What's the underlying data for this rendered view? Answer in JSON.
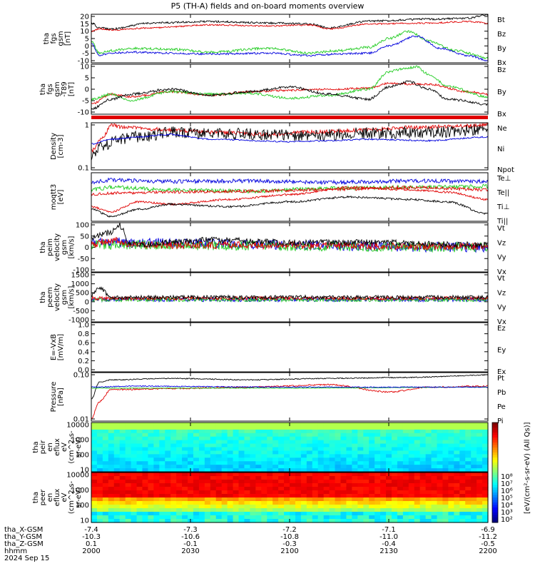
{
  "title": "P5 (TH-A) fields and on-board moments overview",
  "colors": {
    "black": "#000000",
    "red": "#e00000",
    "green": "#22cc22",
    "blue": "#0000dd",
    "frame": "#000000"
  },
  "panels": [
    {
      "id": "fgs-gsm",
      "ylabel": [
        "tha",
        "fgs",
        "gsm",
        "[nT]"
      ],
      "ticks": [
        "20",
        "15",
        "10",
        "5",
        "0",
        "-5",
        "-10"
      ],
      "legend": [
        {
          "name": "Bt",
          "color": "black"
        },
        {
          "name": "Bz",
          "color": "red"
        },
        {
          "name": "By",
          "color": "green"
        },
        {
          "name": "Bx",
          "color": "blue"
        }
      ]
    },
    {
      "id": "fgs-gsm-t89",
      "ylabel": [
        "tha",
        "fgs",
        "gsm",
        "-T89",
        "[nT]"
      ],
      "ticks": [
        "10",
        "5",
        "0",
        "-5",
        "-10"
      ],
      "legend": [
        {
          "name": "Bz",
          "color": "red"
        },
        {
          "name": "By",
          "color": "green"
        },
        {
          "name": "Bx",
          "color": "black"
        }
      ]
    },
    {
      "id": "density",
      "ylabel": [
        "Density",
        "[cm-3]"
      ],
      "ticks": [
        "1",
        "0.1"
      ],
      "legend": [
        {
          "name": "Ne",
          "color": "red"
        },
        {
          "name": "Ni",
          "color": "black"
        },
        {
          "name": "Npot",
          "color": "blue"
        }
      ]
    },
    {
      "id": "temperature",
      "ylabel": [
        "moqtt3",
        "[eV]"
      ],
      "ticks": [],
      "legend": [
        {
          "name": "Te⊥",
          "color": "red"
        },
        {
          "name": "Te||",
          "color": "black"
        },
        {
          "name": "Ti⊥",
          "color": "red"
        },
        {
          "name": "Ti||",
          "color": "green"
        }
      ]
    },
    {
      "id": "peim-velocity",
      "ylabel": [
        "tha",
        "peim",
        "velocity",
        "gsm",
        "[km/s]"
      ],
      "ticks": [
        "100",
        "50",
        "0",
        "-50",
        "-100"
      ],
      "legend": [
        {
          "name": "Vt",
          "color": "black"
        },
        {
          "name": "Vz",
          "color": "red"
        },
        {
          "name": "Vy",
          "color": "green"
        },
        {
          "name": "Vx",
          "color": "blue"
        }
      ]
    },
    {
      "id": "peem-velocity",
      "ylabel": [
        "tha",
        "peem",
        "velocity",
        "gsm",
        "[km/s]"
      ],
      "ticks": [
        "1500",
        "1000",
        "500",
        "0",
        "-500",
        "-1000"
      ],
      "legend": [
        {
          "name": "Vt",
          "color": "black"
        },
        {
          "name": "Vz",
          "color": "red"
        },
        {
          "name": "Vy",
          "color": "green"
        },
        {
          "name": "Vx",
          "color": "blue"
        }
      ]
    },
    {
      "id": "efield",
      "ylabel": [
        "E=-VxB",
        "[mV/m]"
      ],
      "ticks": [
        "1.0",
        "0.8",
        "0.6",
        "0.4",
        "0.2",
        "0.0"
      ],
      "legend": [
        {
          "name": "Ez",
          "color": "red"
        },
        {
          "name": "Ey",
          "color": "green"
        },
        {
          "name": "Ex",
          "color": "blue"
        }
      ]
    },
    {
      "id": "pressure",
      "ylabel": [
        "Pressure",
        "[nPa]"
      ],
      "ticks": [
        "0.10",
        "0.01"
      ],
      "legend": [
        {
          "name": "Pt",
          "color": "black"
        },
        {
          "name": "Pb",
          "color": "red"
        },
        {
          "name": "Pe",
          "color": "green"
        },
        {
          "name": "Pi",
          "color": "blue"
        }
      ]
    },
    {
      "id": "peir-spec",
      "ylabel": [
        "tha",
        "peir",
        "en",
        "eflux",
        "eV",
        "(cm^2-s-",
        "sr-eV)"
      ],
      "ticks": [
        "10000",
        "1000",
        "100",
        "10"
      ],
      "legend": []
    },
    {
      "id": "peer-spec",
      "ylabel": [
        "tha",
        "peer",
        "en",
        "eflux",
        "eV",
        "(cm^2-s-",
        "sr-eV)"
      ],
      "ticks": [
        "10000",
        "1000",
        "100",
        "10"
      ],
      "legend": []
    }
  ],
  "colorbar": {
    "ticks": [
      "10⁸",
      "10⁷",
      "10⁶",
      "10⁵",
      "10⁴",
      "10³",
      "10²"
    ],
    "label": "[eV/(cm²-s-sr-eV) (All Qs)]"
  },
  "xaxis": {
    "rows": [
      {
        "label": "tha_X-GSM",
        "values": [
          "-7.4",
          "-7.3",
          "-7.2",
          "-7.1",
          "-6.9"
        ]
      },
      {
        "label": "tha_Y-GSM",
        "values": [
          "-10.3",
          "-10.6",
          "-10.8",
          "-11.0",
          "-11.2"
        ]
      },
      {
        "label": "tha_Z-GSM",
        "values": [
          "0.1",
          "-0.1",
          "-0.3",
          "-0.4",
          "-0.5"
        ]
      },
      {
        "label": "hhmm",
        "values": [
          "2000",
          "2030",
          "2100",
          "2130",
          "2200"
        ]
      }
    ],
    "date": "2024 Sep 15"
  },
  "chart_data": {
    "type": "line",
    "title": "P5 (TH-A) fields and on-board moments overview",
    "x": [
      "2000",
      "2030",
      "2100",
      "2130",
      "2200"
    ],
    "series": [
      {
        "name": "Bt",
        "values": [
          12,
          17,
          13,
          14,
          19
        ]
      },
      {
        "name": "Bz",
        "values": [
          10,
          14,
          12,
          14,
          16
        ]
      },
      {
        "name": "By",
        "values": [
          -8,
          -2,
          -5,
          5,
          -8
        ]
      },
      {
        "name": "Bx",
        "values": [
          -9,
          -3,
          -6,
          -2,
          -12
        ]
      }
    ]
  }
}
